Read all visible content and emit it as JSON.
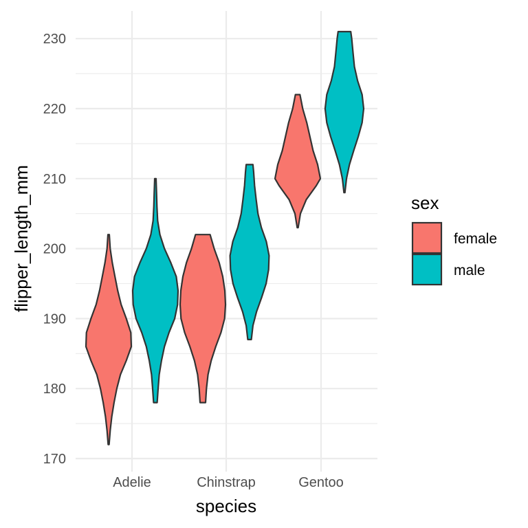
{
  "chart_data": {
    "type": "violin",
    "xlabel": "species",
    "ylabel": "flipper_length_mm",
    "categories": [
      "Adelie",
      "Chinstrap",
      "Gentoo"
    ],
    "ylim": [
      168.8,
      232.3
    ],
    "yticks": [
      170,
      180,
      190,
      200,
      210,
      220,
      230
    ],
    "tick_labels": [
      "170",
      "180",
      "190",
      "200",
      "210",
      "220",
      "230"
    ],
    "grid": true,
    "legend": {
      "title": "sex",
      "position": "right",
      "entries": [
        {
          "label": "female",
          "color": "#F8766D"
        },
        {
          "label": "male",
          "color": "#00BFC4"
        }
      ]
    },
    "violins": [
      {
        "category": "Adelie",
        "sex": "female",
        "color": "#F8766D",
        "profile": [
          [
            172,
            0.02
          ],
          [
            174,
            0.07
          ],
          [
            176,
            0.14
          ],
          [
            178,
            0.24
          ],
          [
            180,
            0.36
          ],
          [
            182,
            0.52
          ],
          [
            184,
            0.78
          ],
          [
            186,
            1.0
          ],
          [
            188,
            0.98
          ],
          [
            190,
            0.78
          ],
          [
            192,
            0.55
          ],
          [
            194,
            0.4
          ],
          [
            196,
            0.28
          ],
          [
            198,
            0.16
          ],
          [
            200,
            0.07
          ],
          [
            202,
            0.03
          ]
        ]
      },
      {
        "category": "Adelie",
        "sex": "male",
        "color": "#00BFC4",
        "profile": [
          [
            178,
            0.08
          ],
          [
            180,
            0.12
          ],
          [
            182,
            0.17
          ],
          [
            184,
            0.27
          ],
          [
            186,
            0.4
          ],
          [
            188,
            0.6
          ],
          [
            190,
            0.85
          ],
          [
            192,
            0.98
          ],
          [
            194,
            1.0
          ],
          [
            196,
            0.92
          ],
          [
            198,
            0.68
          ],
          [
            200,
            0.4
          ],
          [
            202,
            0.2
          ],
          [
            204,
            0.1
          ],
          [
            206,
            0.07
          ],
          [
            208,
            0.05
          ],
          [
            210,
            0.03
          ]
        ]
      },
      {
        "category": "Chinstrap",
        "sex": "female",
        "color": "#F8766D",
        "profile": [
          [
            178,
            0.12
          ],
          [
            180,
            0.16
          ],
          [
            182,
            0.23
          ],
          [
            184,
            0.37
          ],
          [
            186,
            0.57
          ],
          [
            188,
            0.8
          ],
          [
            190,
            0.96
          ],
          [
            192,
            1.0
          ],
          [
            194,
            0.97
          ],
          [
            196,
            0.88
          ],
          [
            198,
            0.72
          ],
          [
            200,
            0.5
          ],
          [
            202,
            0.32
          ]
        ]
      },
      {
        "category": "Chinstrap",
        "sex": "male",
        "color": "#00BFC4",
        "profile": [
          [
            187,
            0.08
          ],
          [
            189,
            0.15
          ],
          [
            191,
            0.31
          ],
          [
            193,
            0.53
          ],
          [
            195,
            0.73
          ],
          [
            197,
            0.84
          ],
          [
            199,
            0.86
          ],
          [
            201,
            0.74
          ],
          [
            203,
            0.52
          ],
          [
            205,
            0.37
          ],
          [
            207,
            0.29
          ],
          [
            209,
            0.22
          ],
          [
            211,
            0.18
          ],
          [
            212,
            0.15
          ]
        ]
      },
      {
        "category": "Gentoo",
        "sex": "female",
        "color": "#F8766D",
        "profile": [
          [
            203,
            0.02
          ],
          [
            205,
            0.12
          ],
          [
            207,
            0.38
          ],
          [
            209,
            0.82
          ],
          [
            210,
            1.0
          ],
          [
            212,
            0.88
          ],
          [
            214,
            0.68
          ],
          [
            216,
            0.54
          ],
          [
            218,
            0.4
          ],
          [
            220,
            0.22
          ],
          [
            222,
            0.1
          ]
        ]
      },
      {
        "category": "Gentoo",
        "sex": "male",
        "color": "#00BFC4",
        "profile": [
          [
            208,
            0.02
          ],
          [
            210,
            0.09
          ],
          [
            212,
            0.22
          ],
          [
            214,
            0.41
          ],
          [
            216,
            0.61
          ],
          [
            218,
            0.78
          ],
          [
            220,
            0.85
          ],
          [
            222,
            0.78
          ],
          [
            224,
            0.58
          ],
          [
            226,
            0.44
          ],
          [
            228,
            0.38
          ],
          [
            230,
            0.32
          ],
          [
            231,
            0.28
          ]
        ]
      }
    ]
  }
}
